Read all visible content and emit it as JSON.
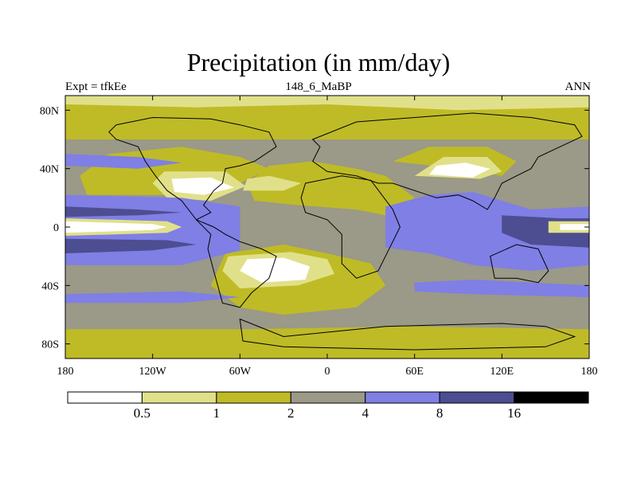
{
  "title": "Precipitation (in mm/day)",
  "subtitle_left": "Expt = tfkEe",
  "subtitle_center": "148_6_MaBP",
  "subtitle_right": "ANN",
  "colors": {
    "bin0": "#ffffff",
    "bin1": "#e1e08a",
    "bin2": "#bfbb26",
    "bin3": "#9b9987",
    "bin4": "#7f7fe5",
    "bin5": "#4d4d91",
    "bin6": "#000000",
    "coast": "#000000"
  },
  "chart_data": {
    "type": "heatmap",
    "title": "Precipitation (in mm/day)",
    "xlim": [
      -180,
      180
    ],
    "ylim": [
      -90,
      90
    ],
    "x_ticks": [
      -180,
      -120,
      -60,
      0,
      60,
      120,
      180
    ],
    "x_tick_labels": [
      "180",
      "120W",
      "60W",
      "0",
      "60E",
      "120E",
      "180"
    ],
    "y_ticks": [
      80,
      40,
      0,
      -40,
      -80
    ],
    "y_tick_labels": [
      "80N",
      "40N",
      "0",
      "40S",
      "80S"
    ],
    "colorbar": {
      "levels": [
        0.5,
        1,
        2,
        4,
        8,
        16
      ],
      "labels": [
        "0.5",
        "1",
        "2",
        "4",
        "8",
        "16"
      ]
    },
    "background_value_bin": 3,
    "regions": [
      {
        "bin": 2,
        "points": [
          [
            -180,
            90
          ],
          [
            180,
            90
          ],
          [
            180,
            60
          ],
          [
            -180,
            60
          ]
        ]
      },
      {
        "bin": 1,
        "points": [
          [
            -180,
            90
          ],
          [
            180,
            90
          ],
          [
            180,
            82
          ],
          [
            90,
            80
          ],
          [
            0,
            84
          ],
          [
            -90,
            82
          ],
          [
            -180,
            84
          ]
        ]
      },
      {
        "bin": 2,
        "points": [
          [
            -180,
            -90
          ],
          [
            180,
            -90
          ],
          [
            180,
            -70
          ],
          [
            60,
            -68
          ],
          [
            -60,
            -70
          ],
          [
            -180,
            -70
          ]
        ]
      },
      {
        "bin": 2,
        "points": [
          [
            -165,
            22
          ],
          [
            -80,
            22
          ],
          [
            -60,
            30
          ],
          [
            -40,
            40
          ],
          [
            -60,
            48
          ],
          [
            -100,
            55
          ],
          [
            -150,
            50
          ],
          [
            -170,
            35
          ]
        ]
      },
      {
        "bin": 2,
        "points": [
          [
            -50,
            18
          ],
          [
            -20,
            15
          ],
          [
            20,
            12
          ],
          [
            40,
            8
          ],
          [
            60,
            20
          ],
          [
            40,
            35
          ],
          [
            20,
            40
          ],
          [
            -10,
            45
          ],
          [
            -40,
            42
          ],
          [
            -55,
            30
          ]
        ]
      },
      {
        "bin": 2,
        "points": [
          [
            -70,
            -18
          ],
          [
            -30,
            -12
          ],
          [
            0,
            -18
          ],
          [
            30,
            -25
          ],
          [
            40,
            -40
          ],
          [
            20,
            -55
          ],
          [
            -30,
            -60
          ],
          [
            -60,
            -55
          ],
          [
            -80,
            -40
          ]
        ]
      },
      {
        "bin": 2,
        "points": [
          [
            45,
            45
          ],
          [
            90,
            40
          ],
          [
            120,
            35
          ],
          [
            130,
            45
          ],
          [
            110,
            55
          ],
          [
            70,
            55
          ]
        ]
      },
      {
        "bin": 1,
        "points": [
          [
            -112,
            38
          ],
          [
            -70,
            38
          ],
          [
            -56,
            28
          ],
          [
            -80,
            18
          ],
          [
            -110,
            20
          ],
          [
            -120,
            30
          ]
        ]
      },
      {
        "bin": 0,
        "points": [
          [
            -107,
            33
          ],
          [
            -80,
            34
          ],
          [
            -64,
            27
          ],
          [
            -85,
            22
          ],
          [
            -105,
            24
          ]
        ]
      },
      {
        "bin": 1,
        "points": [
          [
            -58,
            25
          ],
          [
            -30,
            25
          ],
          [
            -18,
            30
          ],
          [
            -40,
            35
          ],
          [
            -55,
            33
          ]
        ]
      },
      {
        "bin": 1,
        "points": [
          [
            -68,
            -20
          ],
          [
            -25,
            -17
          ],
          [
            0,
            -22
          ],
          [
            5,
            -32
          ],
          [
            -20,
            -40
          ],
          [
            -60,
            -42
          ],
          [
            -72,
            -30
          ]
        ]
      },
      {
        "bin": 0,
        "points": [
          [
            -55,
            -22
          ],
          [
            -30,
            -21
          ],
          [
            -12,
            -27
          ],
          [
            -15,
            -36
          ],
          [
            -45,
            -38
          ],
          [
            -60,
            -30
          ]
        ]
      },
      {
        "bin": 1,
        "points": [
          [
            60,
            35
          ],
          [
            105,
            33
          ],
          [
            120,
            38
          ],
          [
            110,
            48
          ],
          [
            80,
            48
          ]
        ]
      },
      {
        "bin": 0,
        "points": [
          [
            70,
            36
          ],
          [
            100,
            34
          ],
          [
            112,
            40
          ],
          [
            95,
            44
          ],
          [
            75,
            42
          ]
        ]
      },
      {
        "bin": 1,
        "points": [
          [
            -180,
            10
          ],
          [
            -150,
            8
          ],
          [
            -100,
            6
          ],
          [
            -100,
            -6
          ],
          [
            -150,
            -8
          ],
          [
            -180,
            -10
          ]
        ]
      },
      {
        "bin": 1,
        "points": [
          [
            140,
            8
          ],
          [
            180,
            8
          ],
          [
            180,
            -8
          ],
          [
            140,
            -8
          ]
        ]
      },
      {
        "bin": 4,
        "points": [
          [
            -180,
            22
          ],
          [
            -100,
            20
          ],
          [
            -60,
            14
          ],
          [
            -60,
            -16
          ],
          [
            -100,
            -26
          ],
          [
            -180,
            -26
          ]
        ]
      },
      {
        "bin": 4,
        "points": [
          [
            -180,
            50
          ],
          [
            -130,
            48
          ],
          [
            -100,
            44
          ],
          [
            -130,
            40
          ],
          [
            -180,
            42
          ]
        ]
      },
      {
        "bin": 4,
        "points": [
          [
            -180,
            -46
          ],
          [
            -100,
            -44
          ],
          [
            -60,
            -48
          ],
          [
            -100,
            -52
          ],
          [
            -180,
            -52
          ]
        ]
      },
      {
        "bin": 4,
        "points": [
          [
            40,
            14
          ],
          [
            70,
            22
          ],
          [
            100,
            24
          ],
          [
            140,
            12
          ],
          [
            180,
            14
          ],
          [
            180,
            -26
          ],
          [
            140,
            -30
          ],
          [
            100,
            -26
          ],
          [
            70,
            -18
          ],
          [
            40,
            -14
          ]
        ]
      },
      {
        "bin": 4,
        "points": [
          [
            60,
            -38
          ],
          [
            100,
            -36
          ],
          [
            140,
            -38
          ],
          [
            180,
            -40
          ],
          [
            180,
            -48
          ],
          [
            100,
            -46
          ],
          [
            60,
            -44
          ]
        ]
      },
      {
        "bin": 5,
        "points": [
          [
            -180,
            14
          ],
          [
            -130,
            12
          ],
          [
            -100,
            10
          ],
          [
            -130,
            8
          ],
          [
            -180,
            7
          ]
        ]
      },
      {
        "bin": 5,
        "points": [
          [
            -180,
            -8
          ],
          [
            -110,
            -9
          ],
          [
            -90,
            -12
          ],
          [
            -120,
            -16
          ],
          [
            -180,
            -18
          ]
        ]
      },
      {
        "bin": 5,
        "points": [
          [
            120,
            8
          ],
          [
            160,
            6
          ],
          [
            180,
            6
          ],
          [
            180,
            -14
          ],
          [
            140,
            -12
          ],
          [
            120,
            -4
          ]
        ]
      },
      {
        "bin": 1,
        "points": [
          [
            -180,
            6
          ],
          [
            -110,
            4
          ],
          [
            -100,
            0
          ],
          [
            -110,
            -4
          ],
          [
            -180,
            -6
          ]
        ]
      },
      {
        "bin": 0,
        "points": [
          [
            -180,
            4
          ],
          [
            -120,
            2
          ],
          [
            -110,
            0
          ],
          [
            -120,
            -2
          ],
          [
            -180,
            -4
          ]
        ]
      },
      {
        "bin": 1,
        "points": [
          [
            152,
            4
          ],
          [
            180,
            4
          ],
          [
            180,
            -4
          ],
          [
            152,
            -4
          ]
        ]
      },
      {
        "bin": 0,
        "points": [
          [
            160,
            2
          ],
          [
            180,
            2
          ],
          [
            180,
            -2
          ],
          [
            160,
            -2
          ]
        ]
      }
    ],
    "coastlines": [
      {
        "points": [
          [
            -145,
            70
          ],
          [
            -120,
            75
          ],
          [
            -80,
            74
          ],
          [
            -60,
            70
          ],
          [
            -40,
            65
          ],
          [
            -35,
            55
          ],
          [
            -50,
            45
          ],
          [
            -60,
            42
          ],
          [
            -70,
            40
          ],
          [
            -72,
            30
          ],
          [
            -78,
            25
          ],
          [
            -85,
            15
          ],
          [
            -80,
            10
          ],
          [
            -90,
            5
          ],
          [
            -100,
            18
          ],
          [
            -110,
            25
          ],
          [
            -118,
            35
          ],
          [
            -125,
            45
          ],
          [
            -130,
            55
          ],
          [
            -145,
            60
          ],
          [
            -150,
            65
          ]
        ]
      },
      {
        "points": [
          [
            -90,
            5
          ],
          [
            -78,
            0
          ],
          [
            -70,
            -5
          ],
          [
            -60,
            -10
          ],
          [
            -45,
            -15
          ],
          [
            -35,
            -20
          ],
          [
            -40,
            -35
          ],
          [
            -52,
            -45
          ],
          [
            -60,
            -55
          ],
          [
            -72,
            -52
          ],
          [
            -78,
            -30
          ],
          [
            -82,
            -15
          ],
          [
            -80,
            -5
          ]
        ]
      },
      {
        "points": [
          [
            -10,
            60
          ],
          [
            20,
            72
          ],
          [
            60,
            75
          ],
          [
            100,
            78
          ],
          [
            140,
            75
          ],
          [
            170,
            70
          ],
          [
            175,
            62
          ],
          [
            160,
            55
          ],
          [
            145,
            48
          ],
          [
            140,
            40
          ],
          [
            130,
            35
          ],
          [
            120,
            30
          ],
          [
            115,
            20
          ],
          [
            110,
            12
          ],
          [
            100,
            18
          ],
          [
            90,
            22
          ],
          [
            75,
            20
          ],
          [
            60,
            25
          ],
          [
            45,
            30
          ],
          [
            35,
            30
          ],
          [
            20,
            35
          ],
          [
            0,
            38
          ],
          [
            -10,
            45
          ],
          [
            -5,
            55
          ]
        ]
      },
      {
        "points": [
          [
            -15,
            30
          ],
          [
            10,
            35
          ],
          [
            30,
            32
          ],
          [
            45,
            12
          ],
          [
            50,
            0
          ],
          [
            40,
            -20
          ],
          [
            35,
            -30
          ],
          [
            20,
            -35
          ],
          [
            10,
            -25
          ],
          [
            10,
            -5
          ],
          [
            0,
            5
          ],
          [
            -15,
            10
          ],
          [
            -18,
            20
          ]
        ]
      },
      {
        "points": [
          [
            112,
            -20
          ],
          [
            130,
            -12
          ],
          [
            145,
            -15
          ],
          [
            152,
            -30
          ],
          [
            145,
            -38
          ],
          [
            130,
            -35
          ],
          [
            115,
            -35
          ]
        ]
      },
      {
        "points": [
          [
            -60,
            -63
          ],
          [
            -30,
            -75
          ],
          [
            0,
            -72
          ],
          [
            40,
            -68
          ],
          [
            80,
            -67
          ],
          [
            120,
            -66
          ],
          [
            150,
            -68
          ],
          [
            170,
            -75
          ],
          [
            150,
            -82
          ],
          [
            60,
            -84
          ],
          [
            -30,
            -82
          ],
          [
            -58,
            -78
          ]
        ]
      }
    ]
  }
}
